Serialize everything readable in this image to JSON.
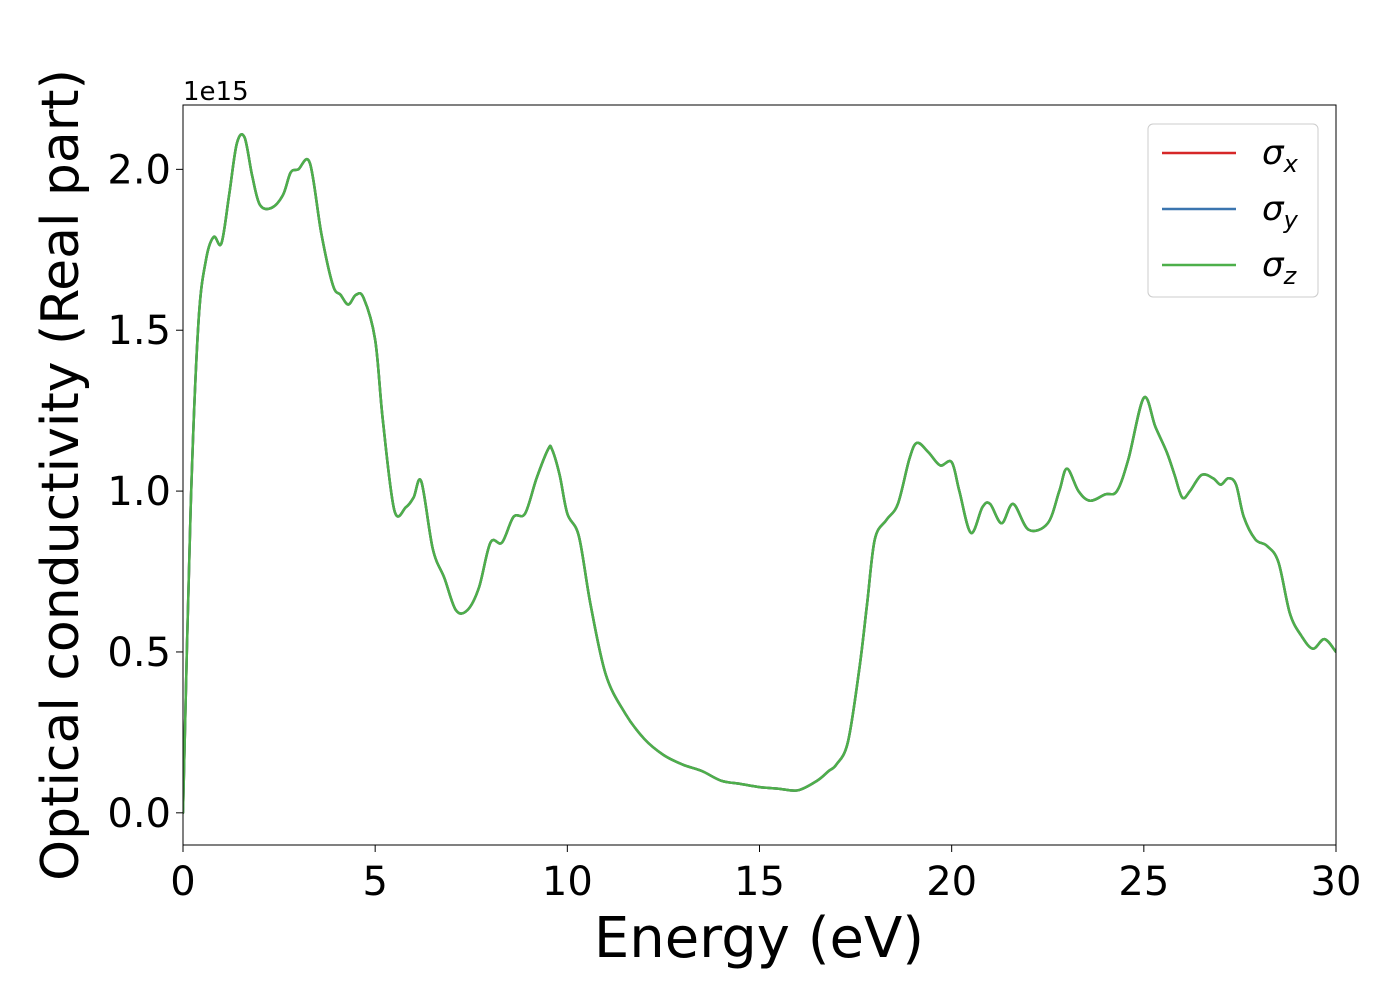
{
  "chart_data": {
    "type": "line",
    "xlabel": "Energy (eV)",
    "ylabel": "Optical conductivity (Real part)",
    "y_offset_label": "1e15",
    "xlim": [
      0,
      30
    ],
    "ylim": [
      -0.1,
      2.2
    ],
    "x_ticks": [
      0,
      5,
      10,
      15,
      20,
      25,
      30
    ],
    "x_tick_labels": [
      "0",
      "5",
      "10",
      "15",
      "20",
      "25",
      "30"
    ],
    "y_ticks": [
      0.0,
      0.5,
      1.0,
      1.5,
      2.0
    ],
    "y_tick_labels": [
      "0.0",
      "0.5",
      "1.0",
      "1.5",
      "2.0"
    ],
    "grid": false,
    "legend_position": "top-right",
    "legend": [
      {
        "symbol": "σ",
        "subscript": "x",
        "color": "#d62728"
      },
      {
        "symbol": "σ",
        "subscript": "y",
        "color": "#3b75af"
      },
      {
        "symbol": "σ",
        "subscript": "z",
        "color": "#4daf4a"
      }
    ],
    "x": [
      0,
      0.2,
      0.4,
      0.6,
      0.8,
      1.0,
      1.2,
      1.4,
      1.6,
      1.8,
      2.0,
      2.3,
      2.6,
      2.8,
      3.0,
      3.3,
      3.6,
      3.9,
      4.1,
      4.3,
      4.5,
      4.7,
      5.0,
      5.2,
      5.5,
      5.8,
      6.0,
      6.2,
      6.5,
      6.8,
      7.1,
      7.4,
      7.7,
      8.0,
      8.3,
      8.6,
      8.9,
      9.2,
      9.5,
      9.6,
      9.8,
      10.0,
      10.3,
      10.6,
      11.0,
      11.5,
      12.0,
      12.5,
      13.0,
      13.5,
      14.0,
      14.5,
      15.0,
      15.5,
      16.0,
      16.5,
      16.8,
      17.0,
      17.3,
      17.6,
      17.8,
      18.0,
      18.3,
      18.6,
      18.9,
      19.1,
      19.4,
      19.7,
      20.0,
      20.2,
      20.5,
      20.8,
      21.0,
      21.3,
      21.6,
      22.0,
      22.5,
      22.8,
      23.0,
      23.3,
      23.6,
      24.0,
      24.3,
      24.6,
      25.0,
      25.3,
      25.6,
      25.8,
      26.0,
      26.2,
      26.5,
      26.8,
      27.0,
      27.2,
      27.4,
      27.6,
      27.9,
      28.2,
      28.5,
      28.8,
      29.1,
      29.4,
      29.7,
      30.0
    ],
    "series": [
      {
        "color": "#d62728",
        "values": [
          0.0,
          0.95,
          1.52,
          1.72,
          1.79,
          1.77,
          1.92,
          2.08,
          2.1,
          1.98,
          1.89,
          1.88,
          1.92,
          1.99,
          2.0,
          2.02,
          1.8,
          1.64,
          1.61,
          1.58,
          1.61,
          1.6,
          1.47,
          1.22,
          0.94,
          0.95,
          0.98,
          1.03,
          0.82,
          0.73,
          0.63,
          0.63,
          0.7,
          0.84,
          0.84,
          0.92,
          0.93,
          1.04,
          1.13,
          1.13,
          1.05,
          0.93,
          0.86,
          0.65,
          0.43,
          0.31,
          0.23,
          0.18,
          0.15,
          0.13,
          0.1,
          0.09,
          0.08,
          0.075,
          0.07,
          0.1,
          0.13,
          0.15,
          0.22,
          0.45,
          0.65,
          0.85,
          0.91,
          0.96,
          1.1,
          1.15,
          1.12,
          1.08,
          1.09,
          1.0,
          0.87,
          0.95,
          0.96,
          0.9,
          0.96,
          0.88,
          0.9,
          1.0,
          1.07,
          1.0,
          0.97,
          0.99,
          1.0,
          1.1,
          1.29,
          1.2,
          1.12,
          1.05,
          0.98,
          1.0,
          1.05,
          1.04,
          1.02,
          1.04,
          1.02,
          0.92,
          0.85,
          0.83,
          0.78,
          0.62,
          0.55,
          0.51,
          0.54,
          0.5
        ]
      },
      {
        "color": "#3b75af",
        "values": [
          0.0,
          0.95,
          1.52,
          1.72,
          1.79,
          1.77,
          1.92,
          2.08,
          2.1,
          1.98,
          1.89,
          1.88,
          1.92,
          1.99,
          2.0,
          2.02,
          1.8,
          1.64,
          1.61,
          1.58,
          1.61,
          1.6,
          1.47,
          1.22,
          0.94,
          0.95,
          0.98,
          1.03,
          0.82,
          0.73,
          0.63,
          0.63,
          0.7,
          0.84,
          0.84,
          0.92,
          0.93,
          1.04,
          1.13,
          1.13,
          1.05,
          0.93,
          0.86,
          0.65,
          0.43,
          0.31,
          0.23,
          0.18,
          0.15,
          0.13,
          0.1,
          0.09,
          0.08,
          0.075,
          0.07,
          0.1,
          0.13,
          0.15,
          0.22,
          0.45,
          0.65,
          0.85,
          0.91,
          0.96,
          1.1,
          1.15,
          1.12,
          1.08,
          1.09,
          1.0,
          0.87,
          0.95,
          0.96,
          0.9,
          0.96,
          0.88,
          0.9,
          1.0,
          1.07,
          1.0,
          0.97,
          0.99,
          1.0,
          1.1,
          1.29,
          1.2,
          1.12,
          1.05,
          0.98,
          1.0,
          1.05,
          1.04,
          1.02,
          1.04,
          1.02,
          0.92,
          0.85,
          0.83,
          0.78,
          0.62,
          0.55,
          0.51,
          0.54,
          0.5
        ]
      },
      {
        "color": "#4daf4a",
        "values": [
          0.0,
          0.95,
          1.52,
          1.72,
          1.79,
          1.77,
          1.92,
          2.08,
          2.1,
          1.98,
          1.89,
          1.88,
          1.92,
          1.99,
          2.0,
          2.02,
          1.8,
          1.64,
          1.61,
          1.58,
          1.61,
          1.6,
          1.47,
          1.22,
          0.94,
          0.95,
          0.98,
          1.03,
          0.82,
          0.73,
          0.63,
          0.63,
          0.7,
          0.84,
          0.84,
          0.92,
          0.93,
          1.04,
          1.13,
          1.13,
          1.05,
          0.93,
          0.86,
          0.65,
          0.43,
          0.31,
          0.23,
          0.18,
          0.15,
          0.13,
          0.1,
          0.09,
          0.08,
          0.075,
          0.07,
          0.1,
          0.13,
          0.15,
          0.22,
          0.45,
          0.65,
          0.85,
          0.91,
          0.96,
          1.1,
          1.15,
          1.12,
          1.08,
          1.09,
          1.0,
          0.87,
          0.95,
          0.96,
          0.9,
          0.96,
          0.88,
          0.9,
          1.0,
          1.07,
          1.0,
          0.97,
          0.99,
          1.0,
          1.1,
          1.29,
          1.2,
          1.12,
          1.05,
          0.98,
          1.0,
          1.05,
          1.04,
          1.02,
          1.04,
          1.02,
          0.92,
          0.85,
          0.83,
          0.78,
          0.62,
          0.55,
          0.51,
          0.54,
          0.5
        ]
      }
    ]
  }
}
